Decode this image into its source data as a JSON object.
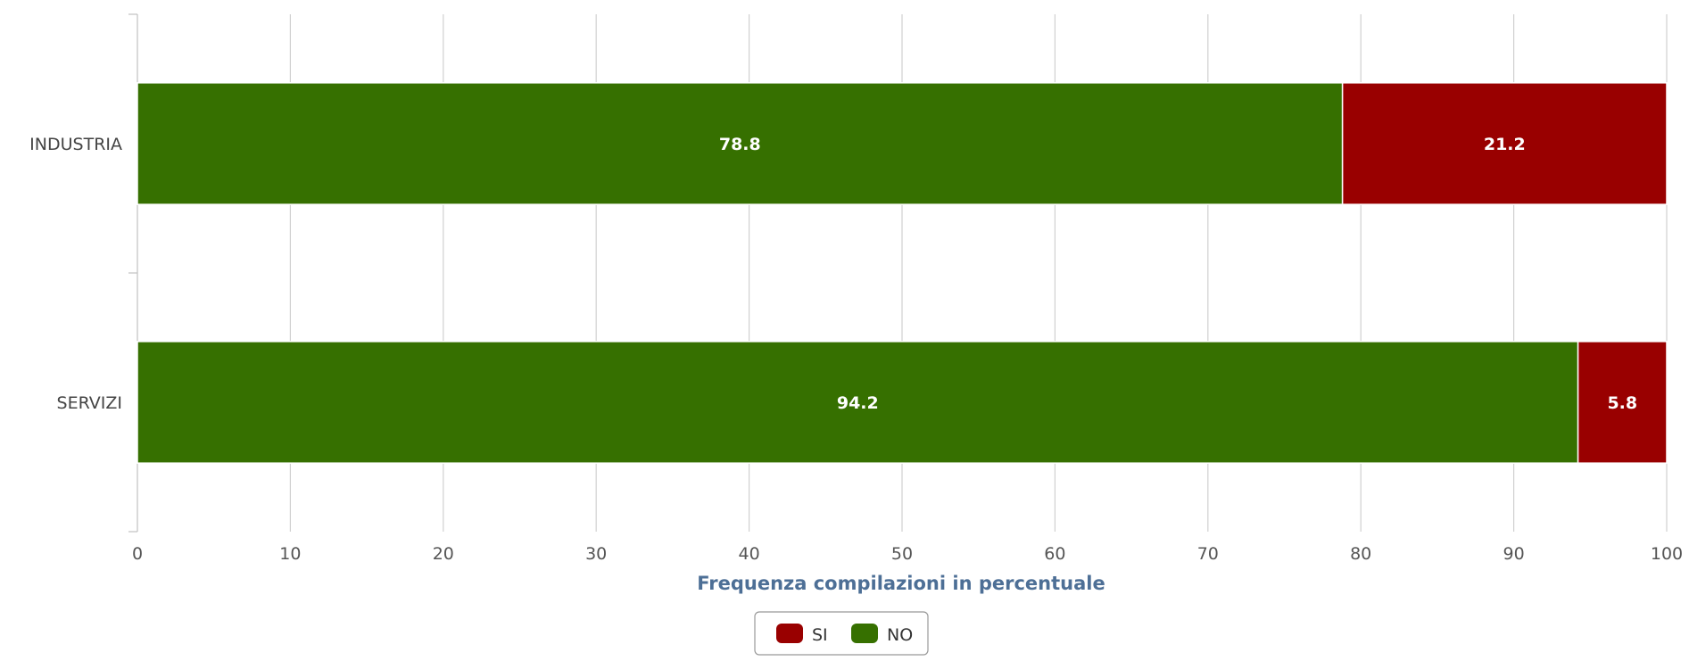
{
  "chart_data": {
    "type": "bar",
    "orientation": "horizontal",
    "stacked": true,
    "categories": [
      "INDUSTRIA",
      "SERVIZI"
    ],
    "series": [
      {
        "name": "NO",
        "color": "#367000",
        "values": [
          78.8,
          94.2
        ]
      },
      {
        "name": "SI",
        "color": "#990000",
        "values": [
          21.2,
          5.8
        ]
      }
    ],
    "xlabel": "Frequenza compilazioni in percentuale",
    "xlim": [
      0,
      100
    ],
    "xticks": [
      0,
      10,
      20,
      30,
      40,
      50,
      60,
      70,
      80,
      90,
      100
    ],
    "grid": "vertical",
    "legend": {
      "placement": "bottom-center",
      "items": [
        {
          "name": "SI",
          "color": "#990000"
        },
        {
          "name": "NO",
          "color": "#367000"
        }
      ]
    }
  }
}
